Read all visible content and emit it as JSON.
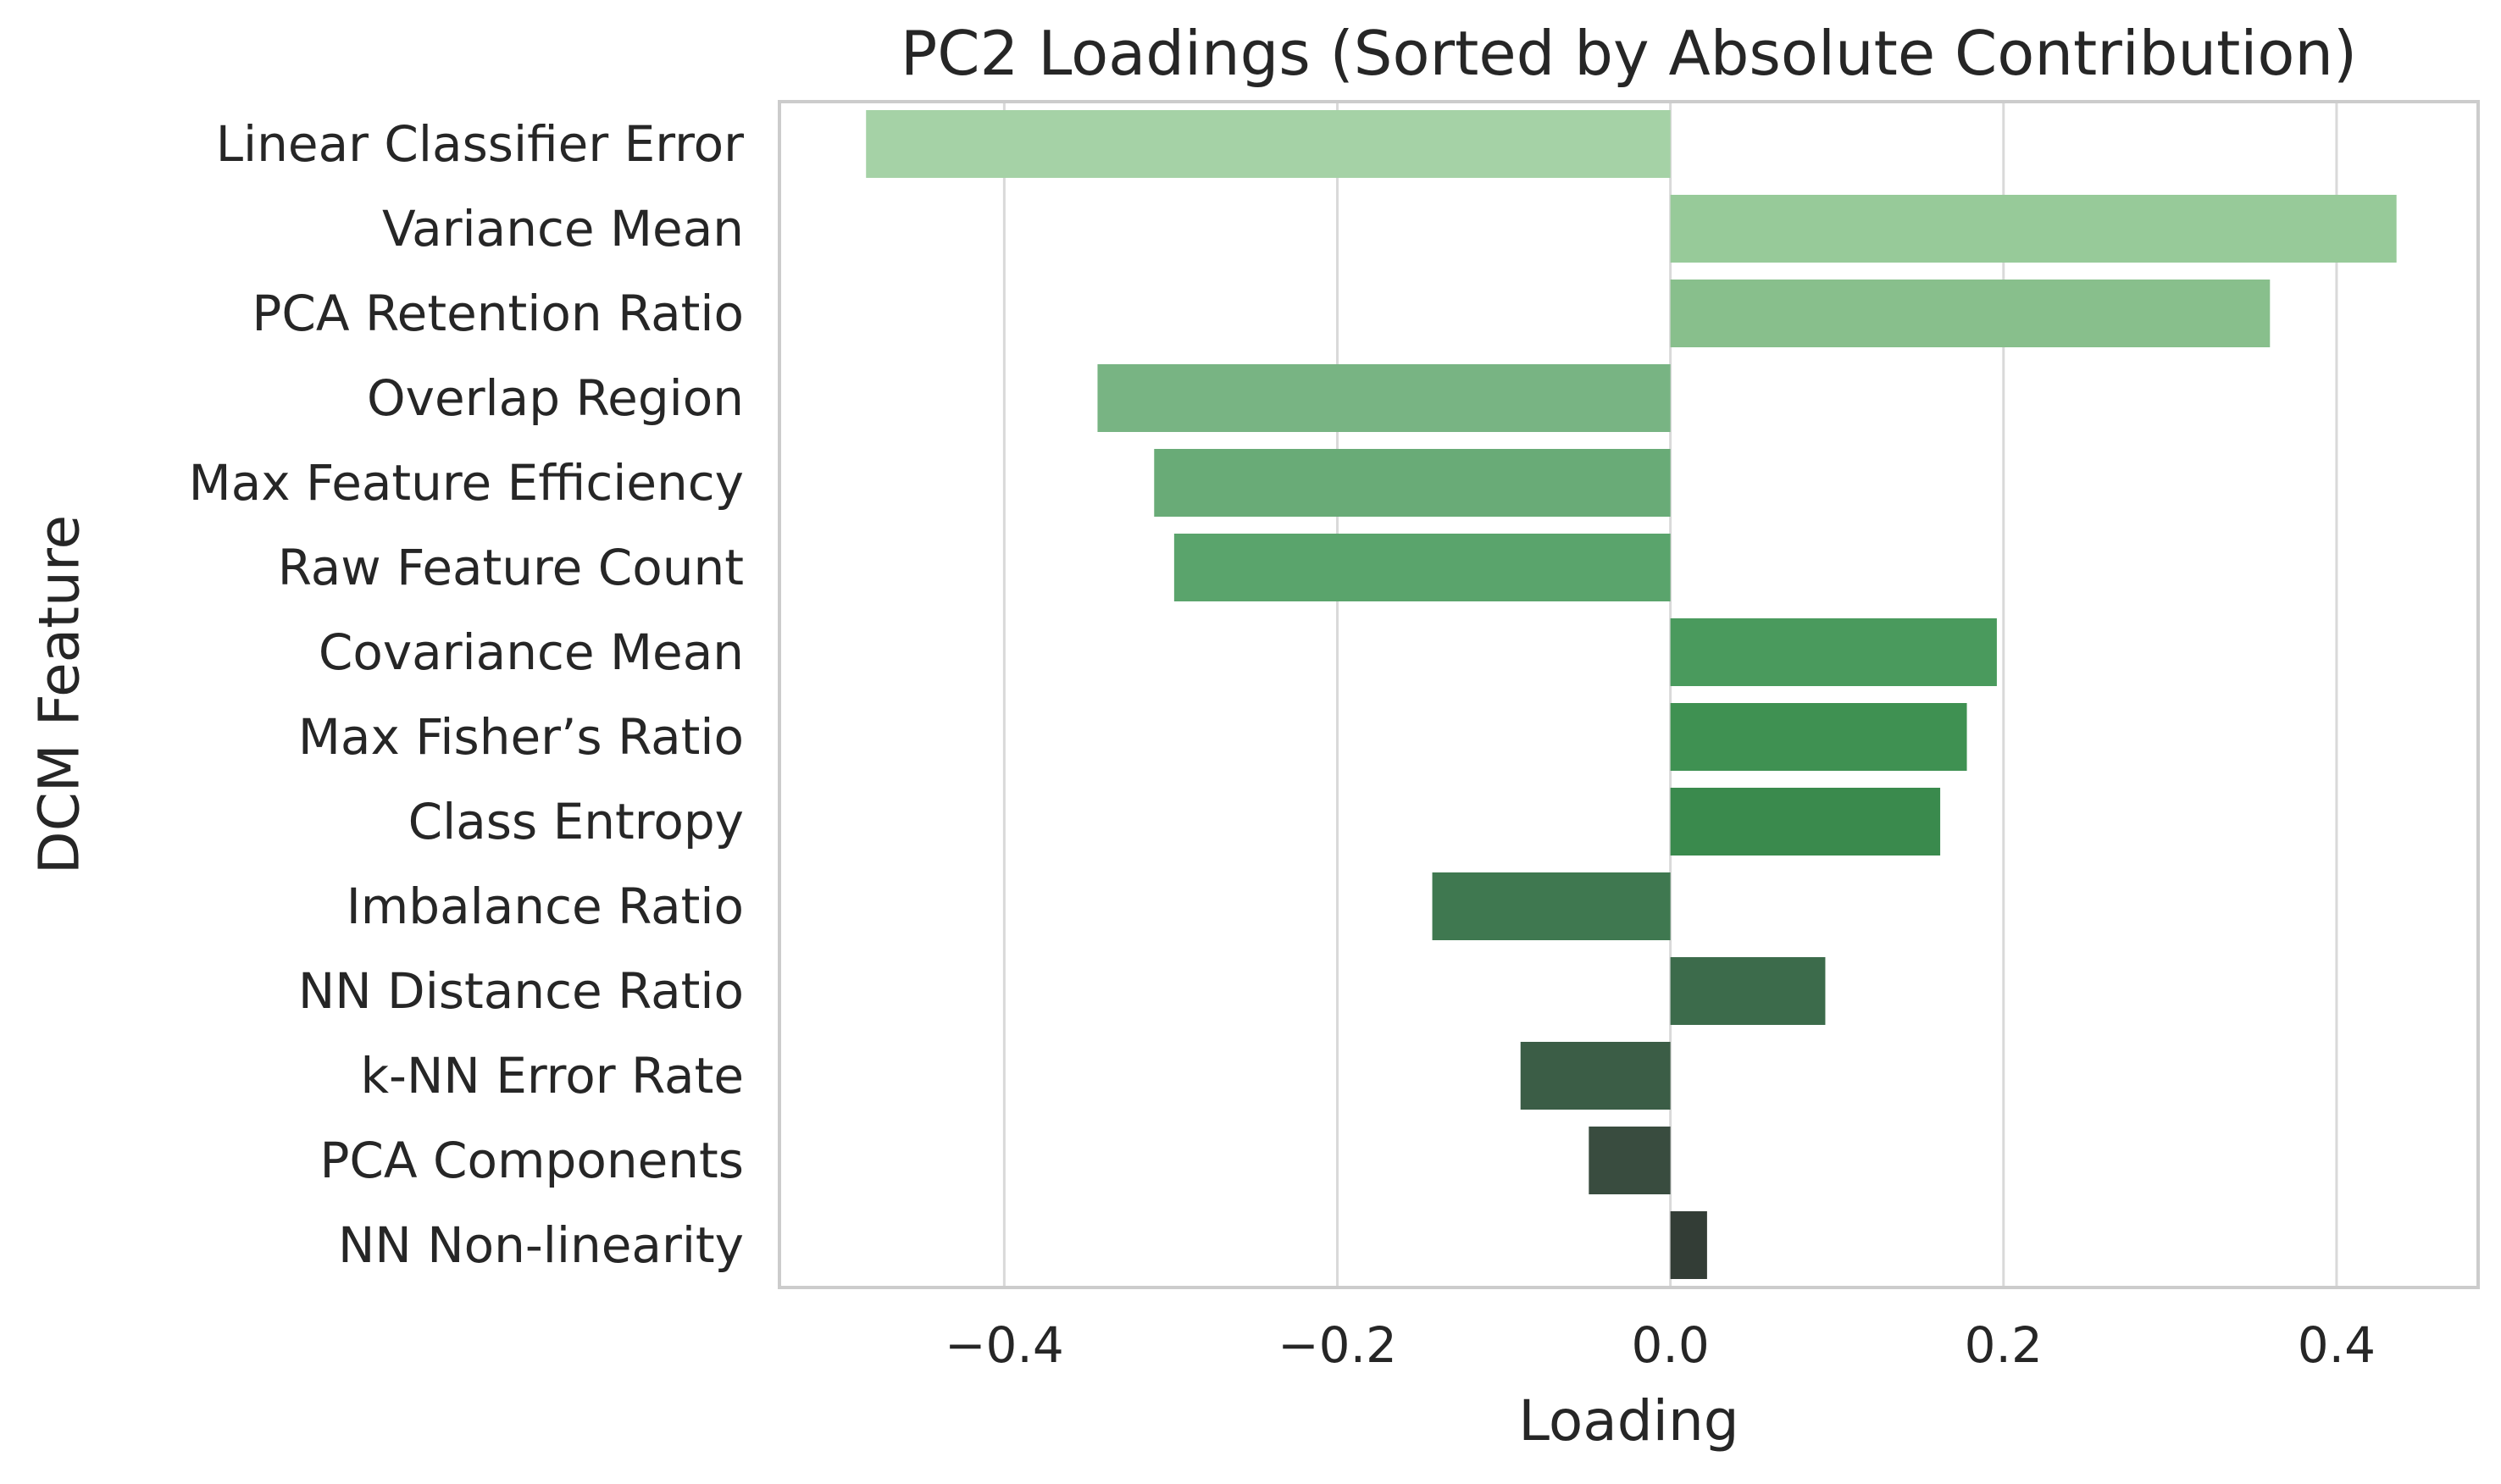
{
  "chart_data": {
    "type": "bar",
    "orientation": "horizontal",
    "title": "PC2 Loadings (Sorted by Absolute Contribution)",
    "xlabel": "Loading",
    "ylabel": "DCM Feature",
    "xlim": [
      -0.535,
      0.485
    ],
    "xticks": [
      -0.4,
      -0.2,
      0.0,
      0.2,
      0.4
    ],
    "xtick_labels": [
      "−0.4",
      "−0.2",
      "0.0",
      "0.2",
      "0.4"
    ],
    "grid": "vertical",
    "categories": [
      "Linear Classifier Error",
      "Variance Mean",
      "PCA Retention Ratio",
      "Overlap Region",
      "Max Feature Efficiency",
      "Raw Feature Count",
      "Covariance Mean",
      "Max Fisher’s Ratio",
      "Class Entropy",
      "Imbalance Ratio",
      "NN Distance Ratio",
      "k-NN Error Rate",
      "PCA Components",
      "NN Non-linearity"
    ],
    "values": [
      -0.483,
      0.436,
      0.36,
      -0.344,
      -0.31,
      -0.298,
      0.196,
      0.178,
      0.162,
      -0.143,
      0.093,
      -0.09,
      -0.049,
      0.022
    ],
    "colors": [
      "#a5d2a6",
      "#97ca99",
      "#88bf8c",
      "#78b483",
      "#69ab77",
      "#5aa46c",
      "#4a9a5d",
      "#3f9152",
      "#3a8a4d",
      "#3f7850",
      "#3c6b4b",
      "#3b5d46",
      "#394c3f",
      "#333d36"
    ]
  }
}
